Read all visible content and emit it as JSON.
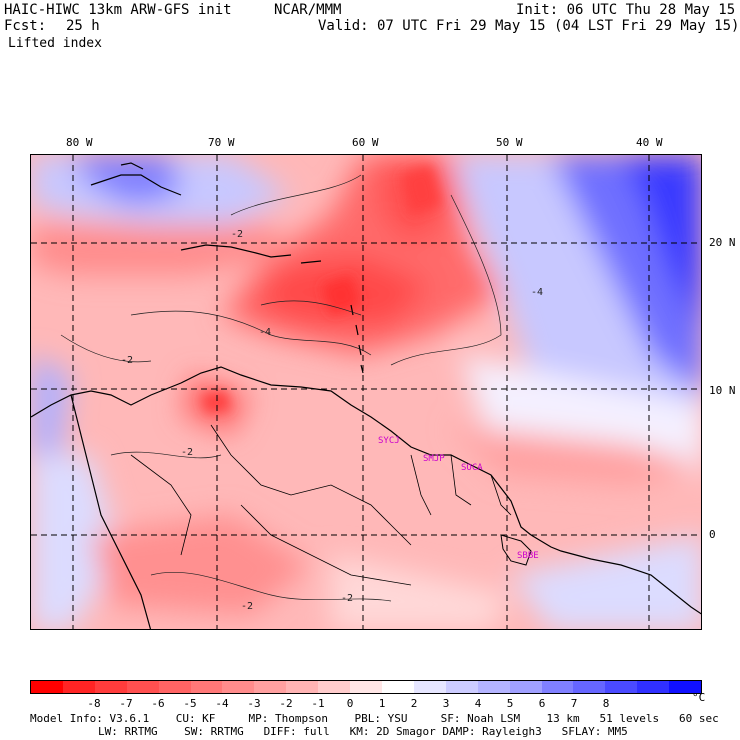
{
  "header": {
    "model": "HAIC-HIWC 13km ARW-GFS init",
    "org": "NCAR/MMM",
    "init": "Init: 06 UTC Thu 28 May 15",
    "fcst_label": "Fcst:",
    "fcst_value": "25 h",
    "valid": "Valid: 07 UTC Fri 29 May 15 (04 LST Fri 29 May 15)",
    "field": "Lifted index"
  },
  "map": {
    "lon_labels": [
      "80 W",
      "70 W",
      "60 W",
      "50 W",
      "40 W"
    ],
    "lat_labels": [
      "20 N",
      "10 N",
      "0"
    ],
    "stations": [
      "SYCJ",
      "SMJP",
      "SOCA",
      "SBBE"
    ],
    "contour_labels": [
      "-2",
      "-4",
      "-2",
      "-2",
      "-4",
      "-2",
      "-2"
    ]
  },
  "colorbar": {
    "labels": [
      "-8",
      "-7",
      "-6",
      "-5",
      "-4",
      "-3",
      "-2",
      "-1",
      "0",
      "1",
      "2",
      "3",
      "4",
      "5",
      "6",
      "7",
      "8"
    ],
    "unit": "°C",
    "colors": [
      "#ff0000",
      "#ff2424",
      "#ff3c3c",
      "#ff5050",
      "#ff6464",
      "#ff7878",
      "#ff8c8c",
      "#ffa0a0",
      "#ffb4b4",
      "#ffcccc",
      "#ffe6e6",
      "#ffffff",
      "#e6e6ff",
      "#ccccff",
      "#b4b4ff",
      "#a0a0ff",
      "#8080ff",
      "#6666ff",
      "#4a4aff",
      "#3030ff",
      "#1010ff"
    ]
  },
  "footer": {
    "line1": "Model Info: V3.6.1    CU: KF     MP: Thompson    PBL: YSU     SF: Noah LSM    13 km   51 levels   60 sec",
    "line2": "LW: RRTMG    SW: RRTMG   DIFF: full   KM: 2D Smagor DAMP: Rayleigh3   SFLAY: MM5"
  }
}
